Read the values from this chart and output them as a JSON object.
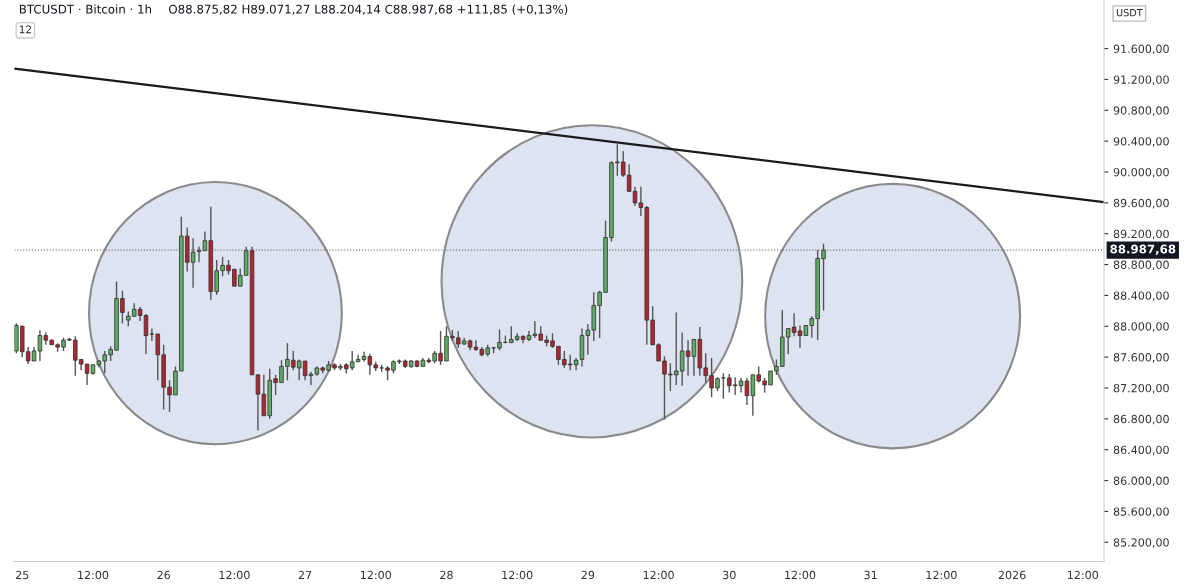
{
  "chart_data": {
    "type": "candlestick",
    "title": "BTCUSDT · Bitcoin · 1h",
    "ylabel": "USDT",
    "annotations": [
      "O88.875,82 H89.071,27 L88.204,14 C88.987,68 +111,85 (+0,13%)",
      "12"
    ],
    "x": [
      "2025-12-24T23:00",
      "2025-12-25T00:00",
      "2025-12-25T01:00",
      "2025-12-25T02:00",
      "2025-12-25T03:00",
      "2025-12-25T04:00",
      "2025-12-25T05:00",
      "2025-12-25T06:00",
      "2025-12-25T07:00",
      "2025-12-25T08:00",
      "2025-12-25T09:00",
      "2025-12-25T10:00",
      "2025-12-25T11:00",
      "2025-12-25T12:00",
      "2025-12-25T13:00",
      "2025-12-25T14:00",
      "2025-12-25T15:00",
      "2025-12-25T16:00",
      "2025-12-25T17:00",
      "2025-12-25T18:00",
      "2025-12-25T19:00",
      "2025-12-25T20:00",
      "2025-12-25T21:00",
      "2025-12-25T22:00",
      "2025-12-25T23:00",
      "2025-12-26T00:00",
      "2025-12-26T01:00",
      "2025-12-26T02:00",
      "2025-12-26T03:00",
      "2025-12-26T04:00",
      "2025-12-26T05:00",
      "2025-12-26T06:00",
      "2025-12-26T07:00",
      "2025-12-26T08:00",
      "2025-12-26T09:00",
      "2025-12-26T10:00",
      "2025-12-26T11:00",
      "2025-12-26T12:00",
      "2025-12-26T13:00",
      "2025-12-26T14:00",
      "2025-12-26T15:00",
      "2025-12-26T16:00",
      "2025-12-26T17:00",
      "2025-12-26T18:00",
      "2025-12-26T19:00",
      "2025-12-26T20:00",
      "2025-12-26T21:00",
      "2025-12-26T22:00",
      "2025-12-26T23:00",
      "2025-12-27T00:00",
      "2025-12-27T01:00",
      "2025-12-27T02:00",
      "2025-12-27T03:00",
      "2025-12-27T04:00",
      "2025-12-27T05:00",
      "2025-12-27T06:00",
      "2025-12-27T07:00",
      "2025-12-27T08:00",
      "2025-12-27T09:00",
      "2025-12-27T10:00",
      "2025-12-27T11:00",
      "2025-12-27T12:00",
      "2025-12-27T13:00",
      "2025-12-27T14:00",
      "2025-12-27T15:00",
      "2025-12-27T16:00",
      "2025-12-27T17:00",
      "2025-12-27T18:00",
      "2025-12-27T19:00",
      "2025-12-27T20:00",
      "2025-12-27T21:00",
      "2025-12-27T22:00",
      "2025-12-27T23:00",
      "2025-12-28T00:00",
      "2025-12-28T01:00",
      "2025-12-28T02:00",
      "2025-12-28T03:00",
      "2025-12-28T04:00",
      "2025-12-28T05:00",
      "2025-12-28T06:00",
      "2025-12-28T07:00",
      "2025-12-28T08:00",
      "2025-12-28T09:00",
      "2025-12-28T10:00",
      "2025-12-28T11:00",
      "2025-12-28T12:00",
      "2025-12-28T13:00",
      "2025-12-28T14:00",
      "2025-12-28T15:00",
      "2025-12-28T16:00",
      "2025-12-28T17:00",
      "2025-12-28T18:00",
      "2025-12-28T19:00",
      "2025-12-28T20:00",
      "2025-12-28T21:00",
      "2025-12-28T22:00",
      "2025-12-28T23:00",
      "2025-12-29T00:00",
      "2025-12-29T01:00",
      "2025-12-29T02:00",
      "2025-12-29T03:00",
      "2025-12-29T04:00",
      "2025-12-29T05:00",
      "2025-12-29T06:00",
      "2025-12-29T07:00",
      "2025-12-29T08:00",
      "2025-12-29T09:00",
      "2025-12-29T10:00",
      "2025-12-29T11:00",
      "2025-12-29T12:00",
      "2025-12-29T13:00",
      "2025-12-29T14:00",
      "2025-12-29T15:00",
      "2025-12-29T16:00",
      "2025-12-29T17:00",
      "2025-12-29T18:00",
      "2025-12-29T19:00",
      "2025-12-29T20:00",
      "2025-12-29T21:00",
      "2025-12-29T22:00",
      "2025-12-29T23:00",
      "2025-12-30T00:00",
      "2025-12-30T01:00",
      "2025-12-30T02:00",
      "2025-12-30T03:00",
      "2025-12-30T04:00",
      "2025-12-30T05:00",
      "2025-12-30T06:00",
      "2025-12-30T07:00",
      "2025-12-30T08:00",
      "2025-12-30T09:00",
      "2025-12-30T10:00",
      "2025-12-30T11:00",
      "2025-12-30T12:00",
      "2025-12-30T13:00",
      "2025-12-30T14:00",
      "2025-12-30T15:00",
      "2025-12-30T16:00"
    ],
    "ohlc": [
      [
        87680,
        88040,
        87650,
        88010
      ],
      [
        88000,
        88010,
        87600,
        87670
      ],
      [
        87670,
        87730,
        87510,
        87550
      ],
      [
        87550,
        87730,
        87550,
        87680
      ],
      [
        87680,
        87950,
        87550,
        87880
      ],
      [
        87880,
        87920,
        87760,
        87820
      ],
      [
        87820,
        87830,
        87760,
        87760
      ],
      [
        87760,
        87780,
        87670,
        87730
      ],
      [
        87730,
        87850,
        87680,
        87820
      ],
      [
        87820,
        87850,
        87810,
        87830
      ],
      [
        87820,
        87870,
        87360,
        87560
      ],
      [
        87570,
        87570,
        87430,
        87510
      ],
      [
        87510,
        87510,
        87240,
        87390
      ],
      [
        87390,
        87510,
        87370,
        87500
      ],
      [
        87500,
        87560,
        87470,
        87550
      ],
      [
        87550,
        87680,
        87390,
        87630
      ],
      [
        87630,
        87740,
        87550,
        87700
      ],
      [
        87690,
        88580,
        87690,
        88360
      ],
      [
        88360,
        88460,
        88040,
        88180
      ],
      [
        88080,
        88190,
        88000,
        88130
      ],
      [
        88130,
        88300,
        88130,
        88220
      ],
      [
        88220,
        88250,
        88070,
        88140
      ],
      [
        88140,
        88160,
        87640,
        87880
      ],
      [
        87900,
        87970,
        87810,
        87900
      ],
      [
        87900,
        87900,
        87300,
        87630
      ],
      [
        87630,
        87760,
        86920,
        87210
      ],
      [
        87210,
        87300,
        86890,
        87110
      ],
      [
        87110,
        87480,
        87110,
        87420
      ],
      [
        87420,
        89420,
        87420,
        89170
      ],
      [
        89170,
        89280,
        88710,
        88830
      ],
      [
        88830,
        89140,
        88500,
        88960
      ],
      [
        88970,
        89030,
        88830,
        88980
      ],
      [
        88980,
        89230,
        88980,
        89110
      ],
      [
        89110,
        89550,
        88340,
        88450
      ],
      [
        88450,
        88860,
        88410,
        88720
      ],
      [
        88720,
        88900,
        88650,
        88790
      ],
      [
        88790,
        88860,
        88670,
        88720
      ],
      [
        88740,
        88740,
        88520,
        88520
      ],
      [
        88520,
        88750,
        88520,
        88660
      ],
      [
        88660,
        89030,
        88660,
        88980
      ],
      [
        88980,
        89030,
        87370,
        87370
      ],
      [
        87370,
        87370,
        86650,
        87120
      ],
      [
        87120,
        87370,
        86840,
        86840
      ],
      [
        86840,
        87450,
        86800,
        87300
      ],
      [
        87320,
        87370,
        87110,
        87270
      ],
      [
        87270,
        87560,
        87270,
        87480
      ],
      [
        87480,
        87780,
        87300,
        87570
      ],
      [
        87560,
        87680,
        87430,
        87470
      ],
      [
        87460,
        87570,
        87300,
        87550
      ],
      [
        87550,
        87550,
        87300,
        87360
      ],
      [
        87360,
        87410,
        87240,
        87380
      ],
      [
        87380,
        87480,
        87360,
        87460
      ],
      [
        87460,
        87480,
        87390,
        87430
      ],
      [
        87430,
        87550,
        87410,
        87500
      ],
      [
        87500,
        87520,
        87430,
        87460
      ],
      [
        87460,
        87510,
        87430,
        87480
      ],
      [
        87500,
        87520,
        87390,
        87450
      ],
      [
        87460,
        87680,
        87430,
        87540
      ],
      [
        87540,
        87630,
        87540,
        87570
      ],
      [
        87570,
        87670,
        87540,
        87610
      ],
      [
        87610,
        87640,
        87370,
        87500
      ],
      [
        87500,
        87540,
        87420,
        87460
      ],
      [
        87460,
        87500,
        87410,
        87460
      ],
      [
        87460,
        87480,
        87300,
        87430
      ],
      [
        87430,
        87560,
        87390,
        87540
      ],
      [
        87540,
        87570,
        87510,
        87550
      ],
      [
        87550,
        87570,
        87460,
        87480
      ],
      [
        87480,
        87560,
        87460,
        87550
      ],
      [
        87550,
        87560,
        87470,
        87480
      ],
      [
        87480,
        87590,
        87480,
        87560
      ],
      [
        87560,
        87590,
        87520,
        87540
      ],
      [
        87550,
        87680,
        87520,
        87650
      ],
      [
        87650,
        87940,
        87500,
        87550
      ],
      [
        87550,
        88000,
        87550,
        87870
      ],
      [
        87870,
        87950,
        87810,
        87850
      ],
      [
        87850,
        87940,
        87720,
        87770
      ],
      [
        87770,
        87850,
        87760,
        87810
      ],
      [
        87810,
        87830,
        87690,
        87730
      ],
      [
        87730,
        87820,
        87680,
        87700
      ],
      [
        87700,
        87730,
        87610,
        87630
      ],
      [
        87640,
        87760,
        87610,
        87720
      ],
      [
        87720,
        87730,
        87650,
        87720
      ],
      [
        87720,
        87960,
        87690,
        87790
      ],
      [
        87790,
        87880,
        87780,
        87790
      ],
      [
        87790,
        88000,
        87780,
        87830
      ],
      [
        87830,
        87910,
        87810,
        87870
      ],
      [
        87870,
        87880,
        87780,
        87830
      ],
      [
        87830,
        87940,
        87810,
        87880
      ],
      [
        87880,
        88070,
        87850,
        87900
      ],
      [
        87900,
        88000,
        87810,
        87820
      ],
      [
        87820,
        87880,
        87740,
        87790
      ],
      [
        87810,
        87910,
        87720,
        87740
      ],
      [
        87740,
        87740,
        87500,
        87570
      ],
      [
        87570,
        87680,
        87460,
        87500
      ],
      [
        87510,
        87630,
        87430,
        87500
      ],
      [
        87500,
        87590,
        87430,
        87560
      ],
      [
        87570,
        87970,
        87480,
        87880
      ],
      [
        87880,
        88030,
        87630,
        87950
      ],
      [
        87950,
        88440,
        87810,
        88270
      ],
      [
        88270,
        88460,
        87850,
        88440
      ],
      [
        88440,
        89370,
        88440,
        89150
      ],
      [
        89150,
        90140,
        89100,
        90120
      ],
      [
        90120,
        90360,
        89950,
        90130
      ],
      [
        90130,
        90270,
        89940,
        89960
      ],
      [
        89960,
        90100,
        89740,
        89750
      ],
      [
        89750,
        89810,
        89560,
        89600
      ],
      [
        89600,
        89810,
        89430,
        89540
      ],
      [
        89540,
        89560,
        87760,
        88080
      ],
      [
        88080,
        88260,
        87760,
        87760
      ],
      [
        87760,
        87780,
        87550,
        87550
      ],
      [
        87550,
        87610,
        86790,
        87380
      ],
      [
        87380,
        87520,
        87160,
        87370
      ],
      [
        87370,
        88180,
        87240,
        87420
      ],
      [
        87420,
        87920,
        87230,
        87680
      ],
      [
        87680,
        87820,
        87360,
        87610
      ],
      [
        87610,
        87830,
        87360,
        87830
      ],
      [
        87830,
        87990,
        87360,
        87460
      ],
      [
        87460,
        87650,
        87270,
        87360
      ],
      [
        87360,
        87590,
        87080,
        87200
      ],
      [
        87200,
        87340,
        87160,
        87320
      ],
      [
        87330,
        87390,
        87060,
        87330
      ],
      [
        87330,
        87380,
        87140,
        87230
      ],
      [
        87240,
        87340,
        87110,
        87230
      ],
      [
        87230,
        87330,
        87140,
        87290
      ],
      [
        87290,
        87330,
        86980,
        87100
      ],
      [
        87100,
        87370,
        86840,
        87370
      ],
      [
        87370,
        87480,
        87270,
        87290
      ],
      [
        87290,
        87330,
        87140,
        87240
      ],
      [
        87240,
        87420,
        87240,
        87420
      ],
      [
        87420,
        87570,
        87370,
        87480
      ],
      [
        87480,
        88210,
        87480,
        87860
      ],
      [
        87860,
        87970,
        87640,
        87970
      ],
      [
        87990,
        88170,
        87870,
        87920
      ],
      [
        87940,
        88010,
        87720,
        87880
      ],
      [
        87880,
        88010,
        87880,
        88010
      ],
      [
        88010,
        88130,
        87850,
        88100
      ],
      [
        88100,
        88990,
        87820,
        88880
      ],
      [
        88875.82,
        89071.27,
        88204.14,
        88987.68
      ]
    ],
    "series": [
      {
        "type": "line",
        "color": "#1a1a1a",
        "x": [
          "2025-12-24T22:40",
          "2026-01-01T15:36"
        ],
        "values": [
          91340,
          89610
        ]
      }
    ],
    "ref_lines": [
      {
        "axis": "y",
        "value": 88987.68,
        "label": "88.987,68",
        "color": "#777777",
        "line_style": "dotted"
      }
    ],
    "xlim": [
      "2025-12-24T22:40",
      "2026-01-01T15:36"
    ],
    "xticks": [
      {
        "value": "2025-12-25",
        "label": "25"
      },
      {
        "value": "2025-12-25T12:00",
        "label": "12:00"
      },
      {
        "value": "2025-12-26",
        "label": "26"
      },
      {
        "value": "2025-12-26T12:00",
        "label": "12:00"
      },
      {
        "value": "2025-12-27",
        "label": "27"
      },
      {
        "value": "2025-12-27T12:00",
        "label": "12:00"
      },
      {
        "value": "2025-12-28",
        "label": "28"
      },
      {
        "value": "2025-12-28T12:00",
        "label": "12:00"
      },
      {
        "value": "2025-12-29",
        "label": "29"
      },
      {
        "value": "2025-12-29T12:00",
        "label": "12:00"
      },
      {
        "value": "2025-12-30",
        "label": "30"
      },
      {
        "value": "2025-12-30T12:00",
        "label": "12:00"
      },
      {
        "value": "2025-12-31",
        "label": "31"
      },
      {
        "value": "2025-12-31T12:00",
        "label": "12:00"
      },
      {
        "value": "2026-01-01",
        "label": "2026"
      },
      {
        "value": "2026-01-01T12:00",
        "label": "12:00"
      }
    ],
    "ylim": [
      84950,
      92230
    ],
    "yticks": [
      {
        "value": 85200,
        "label": "85.200,00"
      },
      {
        "value": 85600,
        "label": "85.600,00"
      },
      {
        "value": 86000,
        "label": "86.000,00"
      },
      {
        "value": 86400,
        "label": "86.400,00"
      },
      {
        "value": 86800,
        "label": "86.800,00"
      },
      {
        "value": 87200,
        "label": "87.200,00"
      },
      {
        "value": 87600,
        "label": "87.600,00"
      },
      {
        "value": 88000,
        "label": "88.000,00"
      },
      {
        "value": 88400,
        "label": "88.400,00"
      },
      {
        "value": 88800,
        "label": "88.800,00"
      },
      {
        "value": 89200,
        "label": "89.200,00"
      },
      {
        "value": 89600,
        "label": "89.600,00"
      },
      {
        "value": 90000,
        "label": "90.000,00"
      },
      {
        "value": 90400,
        "label": "90.400,00"
      },
      {
        "value": 90800,
        "label": "90.800,00"
      },
      {
        "value": 91200,
        "label": "91.200,00"
      },
      {
        "value": 91600,
        "label": "91.600,00"
      }
    ],
    "grid": false
  }
}
